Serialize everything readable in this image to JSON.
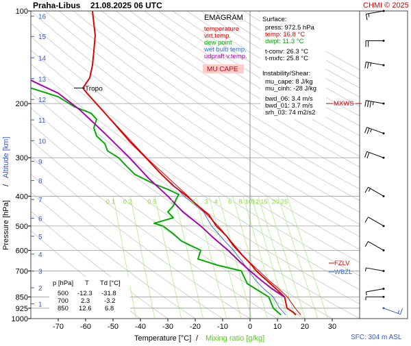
{
  "header": {
    "station": "Praha-Libus",
    "datetime": "21.08.2025 06 UTC",
    "credit": "CHMI © 2025"
  },
  "legend": {
    "title": "EMAGRAM",
    "items": [
      {
        "label": "temperature",
        "color": "#dd0000"
      },
      {
        "label": "virt.temp.",
        "color": "#dd0000"
      },
      {
        "label": "dew point",
        "color": "#00aa00"
      },
      {
        "label": "wet bulb temp.",
        "color": "#3366cc"
      },
      {
        "label": "udpraft v.temp.",
        "color": "#aa00aa"
      }
    ],
    "badge": "MU CAPE"
  },
  "info": {
    "surface_title": "Surface:",
    "surface": [
      {
        "text": "press: 972.5 hPa",
        "color": "#000000"
      },
      {
        "text": "temp: 16.8 °C",
        "color": "#dd0000"
      },
      {
        "text": "dwpt: 11.3 °C",
        "color": "#00aa00"
      }
    ],
    "conv": [
      "t-conv: 26.3 °C",
      "t-mxfc: 25.8 °C"
    ],
    "instability_title": "Instability/Shear:",
    "instability": [
      "mu_cape: 8 J/kg",
      "mu_cinh: -28 J/kg",
      "bwd_06: 3.4 m/s",
      "bwd_01: 3.7 m/s",
      "srh_03: 74 m2/s2"
    ]
  },
  "levels_table": {
    "headers": [
      "p [hPa]",
      "T",
      "Td [°C]"
    ],
    "rows": [
      [
        "500",
        "-12.3",
        "-31.8"
      ],
      [
        "700",
        "2.3",
        "-3.2"
      ],
      [
        "850",
        "12.6",
        "6.8"
      ]
    ]
  },
  "markers": {
    "tropo": "Tropo",
    "mxws": "MXWS",
    "fzlv": "FZLV",
    "wbzl": "WBZL"
  },
  "footer": {
    "xlabel_temp": "Temperature [°C]",
    "xlabel_sep": "/",
    "xlabel_mix": "Mixing ratio [g/kg]",
    "sfc": "SFC: 304 m ASL"
  },
  "chart_data": {
    "type": "line",
    "xlabel": "Temperature [°C]",
    "ylabel": "Pressure [hPa]",
    "ylabel_alt": "Altitude [km]",
    "xlim": [
      -80,
      40
    ],
    "ylim": [
      1000,
      100
    ],
    "y_scale": "log",
    "x_ticks": [
      -70,
      -60,
      -50,
      -40,
      -30,
      -20,
      -10,
      0,
      10,
      20,
      30
    ],
    "p_ticks": [
      100,
      200,
      300,
      400,
      500,
      600,
      700,
      850,
      925,
      1000
    ],
    "alt_ticks": [
      {
        "km": 1,
        "p": 895
      },
      {
        "km": 2,
        "p": 794
      },
      {
        "km": 3,
        "p": 701
      },
      {
        "km": 4,
        "p": 617
      },
      {
        "km": 5,
        "p": 540
      },
      {
        "km": 6,
        "p": 472
      },
      {
        "km": 7,
        "p": 410
      },
      {
        "km": 8,
        "p": 356
      },
      {
        "km": 9,
        "p": 308
      },
      {
        "km": 10,
        "p": 264
      },
      {
        "km": 11,
        "p": 226
      },
      {
        "km": 12,
        "p": 194
      },
      {
        "km": 13,
        "p": 166
      },
      {
        "km": 14,
        "p": 142
      },
      {
        "km": 15,
        "p": 121
      },
      {
        "km": 16,
        "p": 104
      }
    ],
    "mixing_ratio_labels": [
      "0.1",
      "0.2",
      "0.5",
      "1",
      "2",
      "3",
      "4",
      "6",
      "8",
      "10",
      "12",
      "15",
      "20",
      "25"
    ],
    "series": [
      {
        "name": "temperature",
        "color": "#dd0000",
        "points": [
          [
            16.8,
            972.5
          ],
          [
            15.5,
            950
          ],
          [
            13.5,
            925
          ],
          [
            12.6,
            850
          ],
          [
            9.5,
            800
          ],
          [
            6,
            750
          ],
          [
            2.3,
            700
          ],
          [
            0,
            660
          ],
          [
            -3,
            620
          ],
          [
            -6,
            580
          ],
          [
            -8.5,
            540
          ],
          [
            -12.3,
            500
          ],
          [
            -15,
            460
          ],
          [
            -19,
            430
          ],
          [
            -23,
            400
          ],
          [
            -28,
            370
          ],
          [
            -33,
            335
          ],
          [
            -38,
            300
          ],
          [
            -44,
            265
          ],
          [
            -50,
            230
          ],
          [
            -55,
            205
          ],
          [
            -59.5,
            185
          ],
          [
            -61,
            178
          ],
          [
            -58.5,
            165
          ],
          [
            -57.5,
            150
          ],
          [
            -57,
            135
          ],
          [
            -56.5,
            120
          ],
          [
            -57,
            110
          ],
          [
            -57.5,
            100
          ]
        ]
      },
      {
        "name": "virt.temp.",
        "color": "#dd0000",
        "points": [
          [
            18.5,
            972.5
          ],
          [
            16.5,
            925
          ],
          [
            13.6,
            850
          ],
          [
            10.5,
            800
          ],
          [
            6.8,
            750
          ],
          [
            3.3,
            700
          ],
          [
            -1.5,
            640
          ],
          [
            -11.6,
            500
          ],
          [
            -22.6,
            400
          ],
          [
            -37.8,
            300
          ],
          [
            -55,
            205
          ]
        ]
      },
      {
        "name": "dew point",
        "color": "#00aa00",
        "points": [
          [
            11.3,
            972.5
          ],
          [
            10,
            950
          ],
          [
            8.5,
            925
          ],
          [
            6.8,
            850
          ],
          [
            2,
            800
          ],
          [
            -1,
            770
          ],
          [
            -3.2,
            700
          ],
          [
            -12,
            670
          ],
          [
            -19,
            640
          ],
          [
            -18,
            600
          ],
          [
            -25,
            560
          ],
          [
            -28,
            530
          ],
          [
            -31.8,
            500
          ],
          [
            -35,
            490
          ],
          [
            -28,
            470
          ],
          [
            -30,
            450
          ],
          [
            -28,
            430
          ],
          [
            -27,
            410
          ],
          [
            -26,
            395
          ],
          [
            -30,
            380
          ],
          [
            -35,
            365
          ],
          [
            -42,
            340
          ],
          [
            -45,
            320
          ],
          [
            -48,
            300
          ],
          [
            -52,
            285
          ],
          [
            -53,
            270
          ],
          [
            -56,
            255
          ],
          [
            -57,
            240
          ],
          [
            -56,
            225
          ],
          [
            -58,
            215
          ],
          [
            -64,
            205
          ],
          [
            -70,
            190
          ],
          [
            -80,
            178
          ]
        ]
      },
      {
        "name": "wet bulb temp.",
        "color": "#3366cc",
        "points": [
          [
            13,
            972.5
          ],
          [
            12,
            950
          ],
          [
            10.8,
            925
          ],
          [
            8.5,
            850
          ],
          [
            5,
            800
          ],
          [
            2,
            750
          ],
          [
            -0.5,
            700
          ],
          [
            -3,
            650
          ],
          [
            -6,
            600
          ],
          [
            -10,
            550
          ],
          [
            -14,
            500
          ],
          [
            -17,
            450
          ],
          [
            -24,
            400
          ],
          [
            -29,
            360
          ]
        ]
      },
      {
        "name": "udpraft v.temp.",
        "color": "#aa00aa",
        "points": [
          [
            12.5,
            850
          ],
          [
            8,
            800
          ],
          [
            4,
            750
          ],
          [
            0,
            700
          ],
          [
            -4,
            650
          ],
          [
            -8,
            600
          ],
          [
            -13,
            550
          ],
          [
            -18,
            500
          ],
          [
            -24.5,
            450
          ],
          [
            -30,
            400
          ],
          [
            -37,
            350
          ],
          [
            -44,
            300
          ],
          [
            -53,
            250
          ],
          [
            -62,
            210
          ],
          [
            -70,
            185
          ],
          [
            -80,
            168
          ]
        ]
      }
    ],
    "tropopause_p": 178,
    "max_wind_p": 200,
    "freezing_level_p": 660,
    "wet_bulb_zero_p": 705,
    "wind_profile": [
      {
        "p": 925,
        "dir": 110,
        "speed": 15
      },
      {
        "p": 850,
        "dir": 270,
        "speed": 5
      },
      {
        "p": 800,
        "dir": 260,
        "speed": 5
      },
      {
        "p": 700,
        "dir": 280,
        "speed": 5
      },
      {
        "p": 600,
        "dir": 300,
        "speed": 10
      },
      {
        "p": 500,
        "dir": 300,
        "speed": 10
      },
      {
        "p": 400,
        "dir": 300,
        "speed": 15
      },
      {
        "p": 300,
        "dir": 290,
        "speed": 20
      },
      {
        "p": 250,
        "dir": 290,
        "speed": 25
      },
      {
        "p": 200,
        "dir": 280,
        "speed": 35
      },
      {
        "p": 150,
        "dir": 280,
        "speed": 25
      },
      {
        "p": 125,
        "dir": 270,
        "speed": 20
      },
      {
        "p": 100,
        "dir": 260,
        "speed": 15
      }
    ]
  }
}
